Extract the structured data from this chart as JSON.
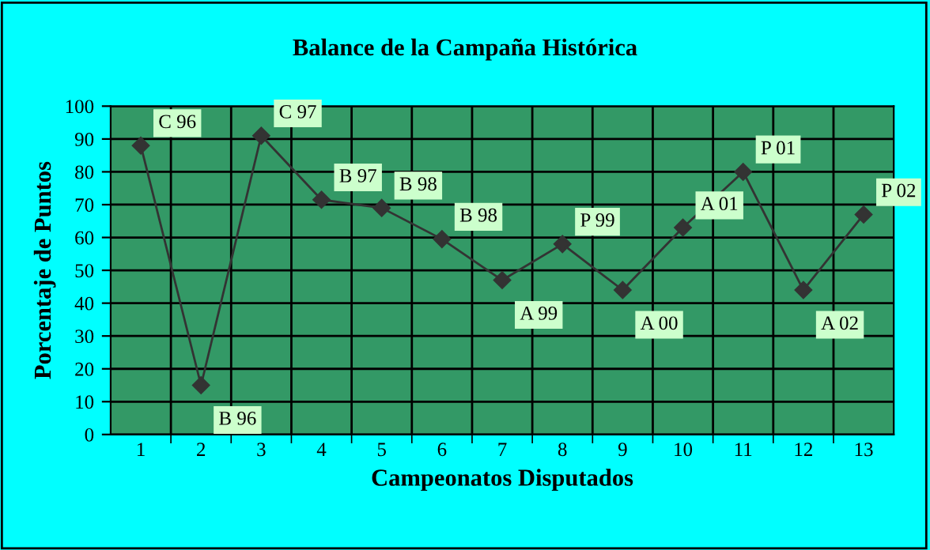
{
  "chart_data": {
    "type": "line",
    "title": "Balance de la Campaña Histórica",
    "xlabel": "Campeonatos Disputados",
    "ylabel": "Porcentaje de Puntos",
    "categories": [
      "1",
      "2",
      "3",
      "4",
      "5",
      "6",
      "7",
      "8",
      "9",
      "10",
      "11",
      "12",
      "13"
    ],
    "series": [
      {
        "color": "#333333",
        "values": [
          88,
          15,
          91,
          71.5,
          69,
          59.5,
          47,
          58,
          44,
          63,
          80,
          44,
          67
        ]
      }
    ],
    "ylim": [
      0,
      100
    ],
    "yticks": [
      0,
      10,
      20,
      30,
      40,
      50,
      60,
      70,
      80,
      90,
      100
    ],
    "grid": true,
    "marker": "diamond",
    "line_style": "solid",
    "annotations": [
      {
        "text": "C 96",
        "x": "1",
        "y": 88
      },
      {
        "text": "B 96",
        "x": "2",
        "y": 15
      },
      {
        "text": "C 97",
        "x": "3",
        "y": 91
      },
      {
        "text": "B 97",
        "x": "4",
        "y": 71.5
      },
      {
        "text": "B 98",
        "x": "5",
        "y": 69
      },
      {
        "text": "B 98",
        "x": "6",
        "y": 59.5
      },
      {
        "text": "A 99",
        "x": "7",
        "y": 47
      },
      {
        "text": "P 99",
        "x": "8",
        "y": 58
      },
      {
        "text": "A 00",
        "x": "9",
        "y": 44
      },
      {
        "text": "A 01",
        "x": "10",
        "y": 63
      },
      {
        "text": "P 01",
        "x": "11",
        "y": 80
      },
      {
        "text": "A 02",
        "x": "12",
        "y": 44
      },
      {
        "text": "P 02",
        "x": "13",
        "y": 67
      }
    ]
  }
}
